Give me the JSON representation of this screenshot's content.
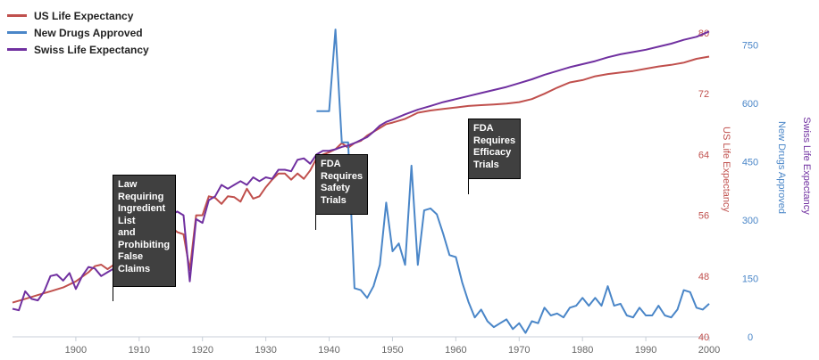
{
  "chart_data": {
    "type": "line",
    "x_axis": {
      "min": 1890,
      "max": 2000,
      "ticks": [
        1900,
        1910,
        1920,
        1930,
        1940,
        1950,
        1960,
        1970,
        1980,
        1990,
        2000
      ]
    },
    "axes": {
      "us": {
        "label": "US Life Expectancy",
        "min": 40,
        "max": 82,
        "ticks": [
          40,
          48,
          56,
          64,
          72,
          80
        ],
        "color": "#c0504d"
      },
      "drugs": {
        "label": "New Drugs Approved",
        "min": 0,
        "max": 820,
        "ticks": [
          0,
          150,
          300,
          450,
          600,
          750
        ],
        "color": "#4a86c8"
      },
      "swiss": {
        "label": "Swiss Life Expectancy",
        "color": "#7030a0"
      }
    },
    "series": [
      {
        "name": "US Life Expectancy",
        "axis": "us",
        "color": "#c0504d",
        "points": [
          [
            1890,
            44.5
          ],
          [
            1892,
            45
          ],
          [
            1894,
            45.5
          ],
          [
            1896,
            46
          ],
          [
            1898,
            46.5
          ],
          [
            1900,
            47.3
          ],
          [
            1902,
            48.5
          ],
          [
            1903,
            49.3
          ],
          [
            1904,
            49.5
          ],
          [
            1905,
            48.9
          ],
          [
            1906,
            49.5
          ],
          [
            1907,
            50
          ],
          [
            1908,
            51
          ],
          [
            1909,
            52
          ],
          [
            1910,
            52.5
          ],
          [
            1911,
            53
          ],
          [
            1912,
            53.5
          ],
          [
            1913,
            53
          ],
          [
            1914,
            54
          ],
          [
            1915,
            54.5
          ],
          [
            1916,
            53.8
          ],
          [
            1917,
            53.5
          ],
          [
            1918,
            48.8
          ],
          [
            1919,
            56
          ],
          [
            1920,
            56
          ],
          [
            1921,
            58.5
          ],
          [
            1922,
            58.3
          ],
          [
            1923,
            57.5
          ],
          [
            1924,
            58.5
          ],
          [
            1925,
            58.4
          ],
          [
            1926,
            57.8
          ],
          [
            1927,
            59.5
          ],
          [
            1928,
            58.2
          ],
          [
            1929,
            58.5
          ],
          [
            1930,
            59.7
          ],
          [
            1931,
            60.7
          ],
          [
            1932,
            61.5
          ],
          [
            1933,
            61.5
          ],
          [
            1934,
            60.7
          ],
          [
            1935,
            61.5
          ],
          [
            1936,
            60.8
          ],
          [
            1937,
            61.9
          ],
          [
            1938,
            63.5
          ],
          [
            1939,
            64
          ],
          [
            1940,
            64.3
          ],
          [
            1941,
            64.7
          ],
          [
            1942,
            65.5
          ],
          [
            1943,
            64.9
          ],
          [
            1944,
            65.5
          ],
          [
            1945,
            65.8
          ],
          [
            1946,
            66.5
          ],
          [
            1947,
            67
          ],
          [
            1948,
            67.5
          ],
          [
            1949,
            68
          ],
          [
            1950,
            68.2
          ],
          [
            1952,
            68.7
          ],
          [
            1954,
            69.5
          ],
          [
            1956,
            69.8
          ],
          [
            1958,
            70
          ],
          [
            1960,
            70.2
          ],
          [
            1962,
            70.4
          ],
          [
            1964,
            70.5
          ],
          [
            1966,
            70.6
          ],
          [
            1968,
            70.7
          ],
          [
            1970,
            70.9
          ],
          [
            1972,
            71.3
          ],
          [
            1974,
            72
          ],
          [
            1976,
            72.8
          ],
          [
            1978,
            73.5
          ],
          [
            1980,
            73.8
          ],
          [
            1982,
            74.3
          ],
          [
            1984,
            74.6
          ],
          [
            1986,
            74.8
          ],
          [
            1988,
            75
          ],
          [
            1990,
            75.3
          ],
          [
            1992,
            75.6
          ],
          [
            1994,
            75.8
          ],
          [
            1996,
            76.1
          ],
          [
            1998,
            76.6
          ],
          [
            2000,
            76.9
          ]
        ]
      },
      {
        "name": "New Drugs Approved",
        "axis": "drugs",
        "color": "#4a86c8",
        "points": [
          [
            1938,
            580
          ],
          [
            1939,
            580
          ],
          [
            1940,
            580
          ],
          [
            1941,
            790
          ],
          [
            1942,
            500
          ],
          [
            1943,
            500
          ],
          [
            1944,
            125
          ],
          [
            1945,
            120
          ],
          [
            1946,
            100
          ],
          [
            1947,
            130
          ],
          [
            1948,
            185
          ],
          [
            1949,
            345
          ],
          [
            1950,
            220
          ],
          [
            1951,
            240
          ],
          [
            1952,
            185
          ],
          [
            1953,
            440
          ],
          [
            1954,
            185
          ],
          [
            1955,
            325
          ],
          [
            1956,
            330
          ],
          [
            1957,
            315
          ],
          [
            1958,
            265
          ],
          [
            1959,
            210
          ],
          [
            1960,
            205
          ],
          [
            1961,
            140
          ],
          [
            1962,
            90
          ],
          [
            1963,
            50
          ],
          [
            1964,
            70
          ],
          [
            1965,
            40
          ],
          [
            1966,
            25
          ],
          [
            1967,
            35
          ],
          [
            1968,
            45
          ],
          [
            1969,
            20
          ],
          [
            1970,
            35
          ],
          [
            1971,
            10
          ],
          [
            1972,
            40
          ],
          [
            1973,
            35
          ],
          [
            1974,
            75
          ],
          [
            1975,
            55
          ],
          [
            1976,
            60
          ],
          [
            1977,
            50
          ],
          [
            1978,
            75
          ],
          [
            1979,
            80
          ],
          [
            1980,
            100
          ],
          [
            1981,
            80
          ],
          [
            1982,
            100
          ],
          [
            1983,
            80
          ],
          [
            1984,
            130
          ],
          [
            1985,
            80
          ],
          [
            1986,
            85
          ],
          [
            1987,
            55
          ],
          [
            1988,
            50
          ],
          [
            1989,
            75
          ],
          [
            1990,
            55
          ],
          [
            1991,
            55
          ],
          [
            1992,
            80
          ],
          [
            1993,
            55
          ],
          [
            1994,
            50
          ],
          [
            1995,
            70
          ],
          [
            1996,
            120
          ],
          [
            1997,
            115
          ],
          [
            1998,
            75
          ],
          [
            1999,
            70
          ],
          [
            2000,
            85
          ]
        ]
      },
      {
        "name": "Swiss Life Expectancy",
        "axis": "us",
        "color": "#7030a0",
        "points": [
          [
            1890,
            43.7
          ],
          [
            1891,
            43.5
          ],
          [
            1892,
            46
          ],
          [
            1893,
            45
          ],
          [
            1894,
            44.8
          ],
          [
            1895,
            46
          ],
          [
            1896,
            48
          ],
          [
            1897,
            48.2
          ],
          [
            1898,
            47.4
          ],
          [
            1899,
            48.4
          ],
          [
            1900,
            46.3
          ],
          [
            1901,
            48
          ],
          [
            1902,
            49.2
          ],
          [
            1903,
            49
          ],
          [
            1904,
            48
          ],
          [
            1905,
            48.5
          ],
          [
            1906,
            49
          ],
          [
            1907,
            50.5
          ],
          [
            1908,
            52.3
          ],
          [
            1909,
            51.5
          ],
          [
            1910,
            52
          ],
          [
            1911,
            51.3
          ],
          [
            1912,
            54
          ],
          [
            1913,
            53.8
          ],
          [
            1914,
            55
          ],
          [
            1915,
            56
          ],
          [
            1916,
            56.5
          ],
          [
            1917,
            56
          ],
          [
            1918,
            47.3
          ],
          [
            1919,
            55.5
          ],
          [
            1920,
            55
          ],
          [
            1921,
            58
          ],
          [
            1922,
            58.5
          ],
          [
            1923,
            60
          ],
          [
            1924,
            59.5
          ],
          [
            1925,
            60
          ],
          [
            1926,
            60.5
          ],
          [
            1927,
            60
          ],
          [
            1928,
            61
          ],
          [
            1929,
            60.5
          ],
          [
            1930,
            61
          ],
          [
            1931,
            60.8
          ],
          [
            1932,
            62
          ],
          [
            1933,
            62
          ],
          [
            1934,
            61.8
          ],
          [
            1935,
            63.3
          ],
          [
            1936,
            63.5
          ],
          [
            1937,
            62.8
          ],
          [
            1938,
            64
          ],
          [
            1939,
            64.5
          ],
          [
            1940,
            64.5
          ],
          [
            1941,
            64.7
          ],
          [
            1942,
            65
          ],
          [
            1943,
            65.2
          ],
          [
            1944,
            65.5
          ],
          [
            1945,
            65.9
          ],
          [
            1946,
            66.3
          ],
          [
            1947,
            67
          ],
          [
            1948,
            67.8
          ],
          [
            1949,
            68.3
          ],
          [
            1950,
            68.6
          ],
          [
            1952,
            69.3
          ],
          [
            1954,
            69.9
          ],
          [
            1956,
            70.4
          ],
          [
            1958,
            70.9
          ],
          [
            1960,
            71.3
          ],
          [
            1962,
            71.7
          ],
          [
            1964,
            72.1
          ],
          [
            1966,
            72.5
          ],
          [
            1968,
            72.9
          ],
          [
            1970,
            73.4
          ],
          [
            1972,
            73.9
          ],
          [
            1974,
            74.5
          ],
          [
            1976,
            75
          ],
          [
            1978,
            75.5
          ],
          [
            1980,
            75.9
          ],
          [
            1982,
            76.3
          ],
          [
            1984,
            76.8
          ],
          [
            1986,
            77.2
          ],
          [
            1988,
            77.5
          ],
          [
            1990,
            77.8
          ],
          [
            1992,
            78.2
          ],
          [
            1994,
            78.6
          ],
          [
            1996,
            79.1
          ],
          [
            1998,
            79.5
          ],
          [
            2000,
            80.2
          ]
        ]
      }
    ],
    "annotations": [
      {
        "lines": [
          "Law",
          "Requiring",
          "Ingredient",
          "List",
          "and",
          "Prohibiting",
          "False",
          "Claims"
        ],
        "x": 1906
      },
      {
        "lines": [
          "FDA",
          "Requires",
          "Safety",
          "Trials"
        ],
        "x": 1938
      },
      {
        "lines": [
          "FDA",
          "Requires",
          "Efficacy",
          "Trials"
        ],
        "x": 1962
      }
    ],
    "legend": {
      "position": "top-left"
    },
    "grid": false
  }
}
